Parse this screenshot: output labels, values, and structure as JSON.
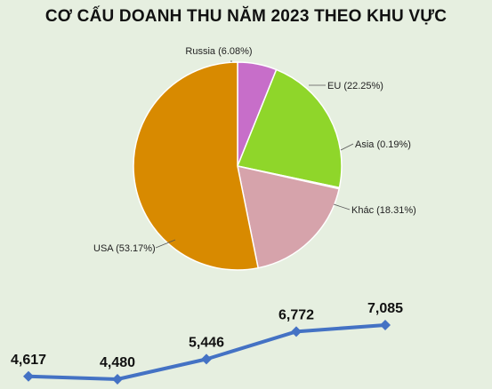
{
  "chart_data": [
    {
      "type": "pie",
      "title": "CƠ CẤU DOANH THU NĂM 2023 THEO KHU VỰC",
      "slices": [
        {
          "name": "Russia",
          "value": 6.08,
          "label": "Russia (6.08%)",
          "color": "#c76ec9"
        },
        {
          "name": "EU",
          "value": 22.25,
          "label": "EU (22.25%)",
          "color": "#8fd62a"
        },
        {
          "name": "Asia",
          "value": 0.19,
          "label": "Asia (0.19%)",
          "color": "#c98a3a"
        },
        {
          "name": "Khác",
          "value": 18.31,
          "label": "Khác (18.31%)",
          "color": "#d6a3ab"
        },
        {
          "name": "USA",
          "value": 53.17,
          "label": "USA (53.17%)",
          "color": "#d88a00"
        }
      ]
    },
    {
      "type": "line",
      "values": [
        4617,
        4480,
        5446,
        6772,
        7085
      ],
      "labels": [
        "4,617",
        "4,480",
        "5,446",
        "6,772",
        "7,085"
      ],
      "color": "#4472c4"
    }
  ]
}
